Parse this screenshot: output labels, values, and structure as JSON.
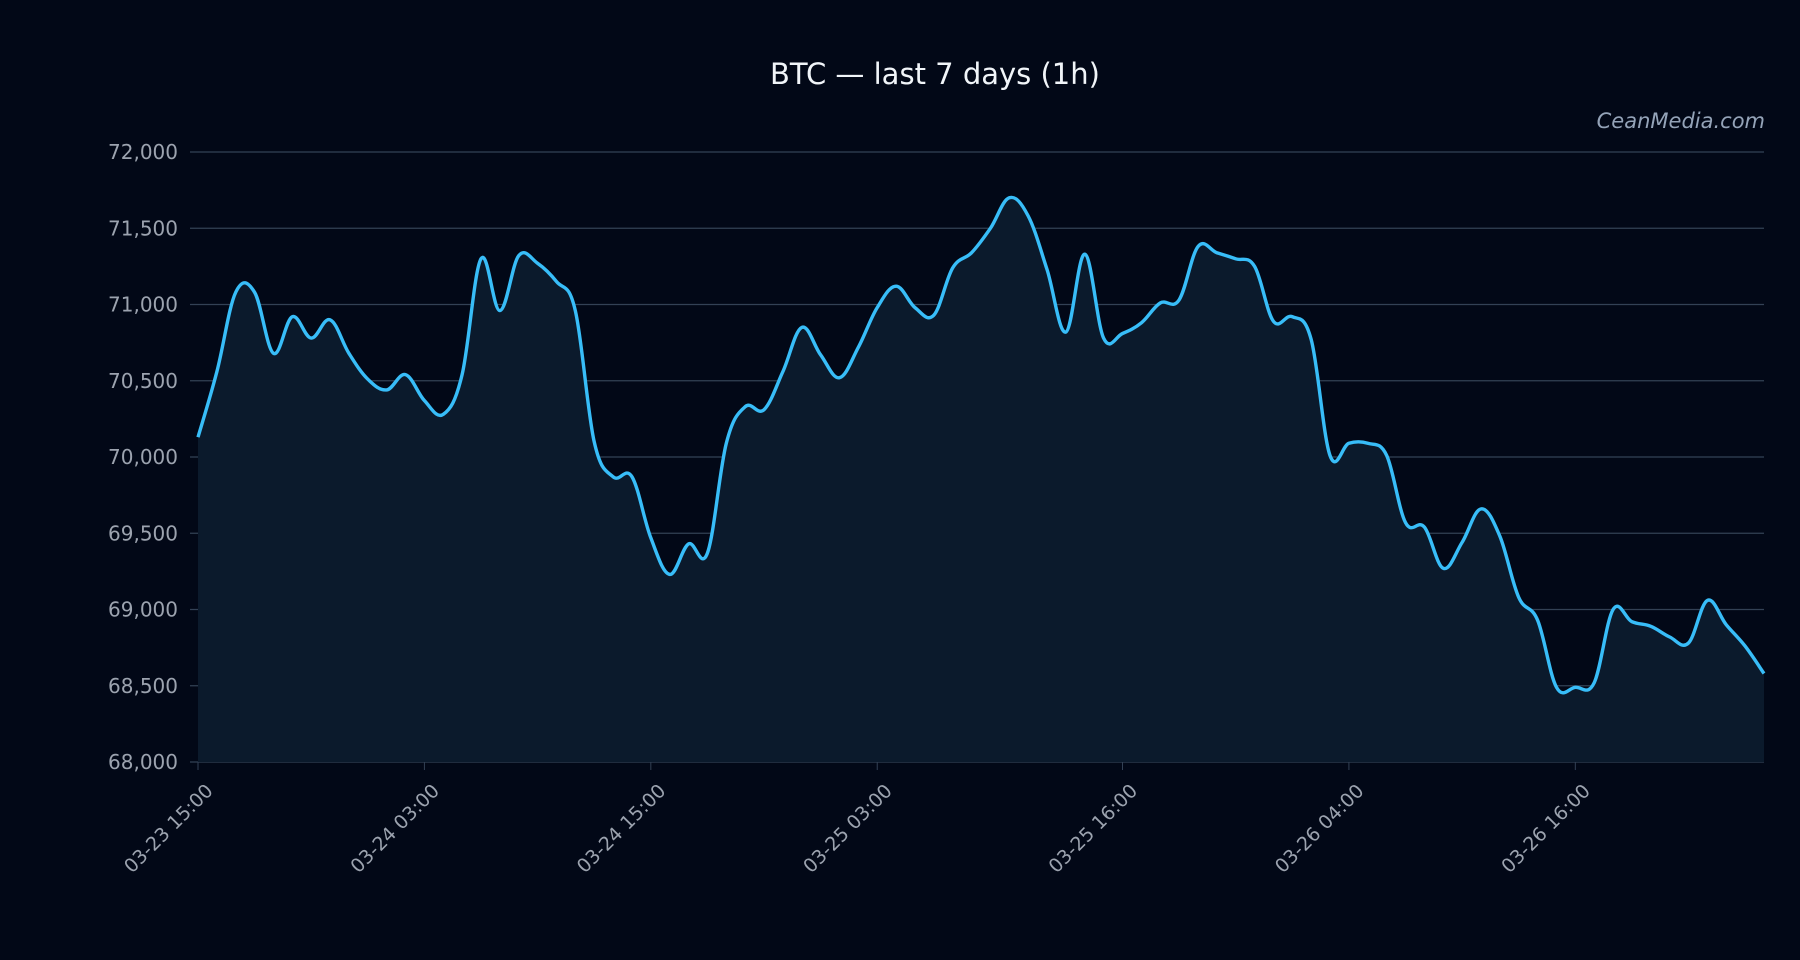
{
  "chart_data": {
    "type": "area",
    "title": "BTC — last 7 days (1h)",
    "watermark": "CeanMedia.com",
    "xlabel": "",
    "ylabel": "",
    "ylim": [
      68000,
      72000
    ],
    "grid": true,
    "legend": "none",
    "y_ticks": [
      "68,000",
      "68,500",
      "69,000",
      "69,500",
      "70,000",
      "70,500",
      "71,000",
      "71,500",
      "72,000"
    ],
    "x_ticks": [
      {
        "hour": 0,
        "label": "03-23 15:00"
      },
      {
        "hour": 12,
        "label": "03-24 03:00"
      },
      {
        "hour": 24,
        "label": "03-24 15:00"
      },
      {
        "hour": 36,
        "label": "03-25 03:00"
      },
      {
        "hour": 49,
        "label": "03-25 16:00"
      },
      {
        "hour": 61,
        "label": "03-26 04:00"
      },
      {
        "hour": 73,
        "label": "03-26 16:00"
      }
    ],
    "colors": {
      "line": "#38bdf8",
      "area": "#0b1a2c",
      "grid": "#334155",
      "background": "#020817"
    },
    "series": [
      {
        "x_start": "03-23 15:00",
        "x_step": "1h",
        "values": [
          70130,
          70560,
          71080,
          71080,
          70680,
          70920,
          70780,
          70900,
          70680,
          70510,
          70440,
          70540,
          70370,
          70280,
          70540,
          71300,
          70960,
          71320,
          71270,
          71150,
          70960,
          70100,
          69870,
          69870,
          69470,
          69230,
          69430,
          69370,
          70090,
          70330,
          70310,
          70560,
          70850,
          70670,
          70520,
          70720,
          70980,
          71120,
          70980,
          70930,
          71240,
          71340,
          71500,
          71700,
          71580,
          71230,
          70820,
          71330,
          70780,
          70810,
          70880,
          71010,
          71030,
          71380,
          71340,
          71300,
          71250,
          70890,
          70920,
          70770,
          70010,
          70090,
          70090,
          70010,
          69570,
          69540,
          69270,
          69440,
          69660,
          69480,
          69080,
          68930,
          68490,
          68490,
          68520,
          69000,
          68920,
          68890,
          68820,
          68780,
          69060,
          68900,
          68760,
          68580
        ]
      }
    ]
  }
}
